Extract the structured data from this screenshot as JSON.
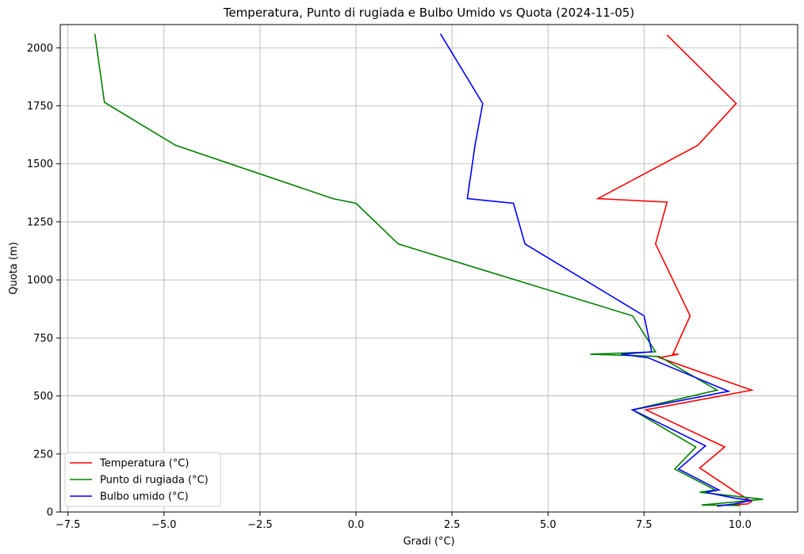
{
  "chart_data": {
    "type": "line",
    "title": "Temperatura, Punto di rugiada e Bulbo Umido vs Quota (2024-11-05)",
    "xlabel": "Gradi (°C)",
    "ylabel": "Quota (m)",
    "xlim": [
      -7.7,
      11.5
    ],
    "ylim": [
      0,
      2100
    ],
    "xticks": [
      -7.5,
      -5.0,
      -2.5,
      0.0,
      2.5,
      5.0,
      7.5,
      10.0
    ],
    "xtick_labels": [
      "−7.5",
      "−5.0",
      "−2.5",
      "0.0",
      "2.5",
      "5.0",
      "7.5",
      "10.0"
    ],
    "yticks": [
      0,
      250,
      500,
      750,
      1000,
      1250,
      1500,
      1750,
      2000
    ],
    "ytick_labels": [
      "0",
      "250",
      "500",
      "750",
      "1000",
      "1250",
      "1500",
      "1750",
      "2000"
    ],
    "grid": true,
    "legend_position": "lower-left",
    "series": [
      {
        "name": "Temperatura (°C)",
        "color": "#ff0000",
        "x": [
          9.4,
          10.2,
          10.3,
          9.85,
          8.95,
          9.6,
          7.55,
          10.3,
          7.9,
          8.4,
          8.25,
          8.7,
          7.8,
          8.1,
          6.3,
          8.9,
          9.9,
          8.1
        ],
        "y": [
          28,
          35,
          45,
          90,
          190,
          280,
          440,
          525,
          665,
          680,
          680,
          845,
          1155,
          1335,
          1350,
          1580,
          1760,
          2055
        ]
      },
      {
        "name": "Punto di rugiada (°C)",
        "color": "#008000",
        "x": [
          10.0,
          9.0,
          10.6,
          8.95,
          9.35,
          8.3,
          8.85,
          7.2,
          9.4,
          7.9,
          6.1,
          7.8,
          7.2,
          1.1,
          0.0,
          -0.6,
          -4.7,
          -6.55,
          -6.8
        ],
        "y": [
          28,
          30,
          55,
          85,
          95,
          185,
          280,
          440,
          525,
          670,
          680,
          690,
          845,
          1155,
          1330,
          1350,
          1580,
          1765,
          2060
        ]
      },
      {
        "name": "Bulbo umido (°C)",
        "color": "#0000ff",
        "x": [
          9.4,
          9.85,
          10.3,
          9.85,
          9.1,
          9.45,
          8.4,
          9.1,
          7.2,
          9.7,
          7.6,
          6.9,
          7.7,
          7.5,
          4.4,
          4.1,
          2.9,
          3.1,
          3.3,
          2.2
        ],
        "y": [
          25,
          35,
          50,
          60,
          85,
          95,
          185,
          285,
          440,
          520,
          665,
          680,
          690,
          845,
          1155,
          1330,
          1350,
          1580,
          1760,
          2060
        ]
      }
    ]
  }
}
